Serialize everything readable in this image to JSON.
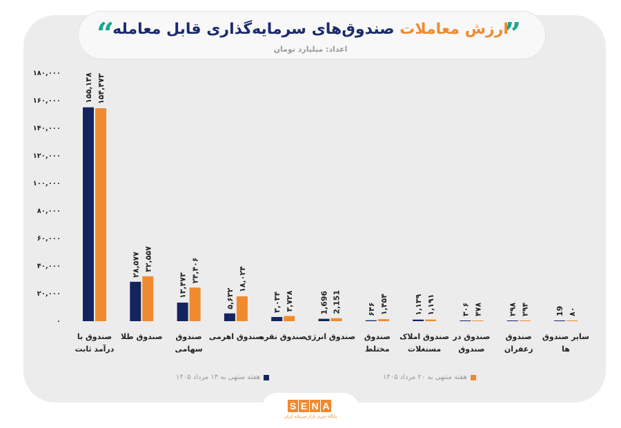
{
  "header": {
    "title_accent": "ارزش معاملات",
    "title_main": "صندوق‌های سرمایه‌گذاری قابل معامله",
    "subtitle": "اعداد: میلیارد تومان",
    "quote_left": "“",
    "quote_right": "”"
  },
  "legend": {
    "series1": "هفته منتهی به ۱۴ مرداد ۱۴۰۵",
    "series2": "هفته منتهی به ۲۰ مرداد ۱۴۰۵"
  },
  "logo": {
    "letters": [
      "S",
      "E",
      "N",
      "A"
    ],
    "tagline": "پایگاه خبری بازار سرمایه ایران"
  },
  "colors": {
    "series1": "#14245e",
    "series2": "#f08a2e",
    "accent": "#f08a2e",
    "title": "#1b2a6b",
    "quote": "#1aa68f"
  },
  "chart_data": {
    "type": "bar",
    "ylim": [
      0,
      180000
    ],
    "yticks": [
      0,
      20000,
      40000,
      60000,
      80000,
      100000,
      120000,
      140000,
      160000,
      180000
    ],
    "ytick_labels": [
      "۰",
      "۲۰,۰۰۰",
      "۴۰,۰۰۰",
      "۶۰,۰۰۰",
      "۸۰,۰۰۰",
      "۱۰۰,۰۰۰",
      "۱۲۰,۰۰۰",
      "۱۴۰,۰۰۰",
      "۱۶۰,۰۰۰",
      "۱۸۰,۰۰۰"
    ],
    "categories": [
      [
        "صندوق با",
        "درآمد ثابت"
      ],
      [
        "صندوق طلا"
      ],
      [
        "صندوق",
        "سهامی"
      ],
      [
        "صندوق اهرمی"
      ],
      [
        "صندوق نقره"
      ],
      [
        "صندوق انرژی"
      ],
      [
        "صندوق",
        "مختلط"
      ],
      [
        "صندوق املاک",
        "مستغلات"
      ],
      [
        "صندوق در",
        "صندوق"
      ],
      [
        "صندوق",
        "زعفران"
      ],
      [
        "سایر صندوق",
        "ها"
      ]
    ],
    "series": [
      {
        "name": "هفته منتهی به ۱۴ مرداد ۱۴۰۵",
        "values": [
          155138,
          28577,
          13473,
          5632,
          3034,
          1696,
          646,
          1139,
          306,
          298,
          19
        ],
        "labels": [
          "۱۵۵,۱۳۸",
          "۲۸,۵۷۷",
          "۱۳,۴۷۳",
          "۵,۶۳۲",
          "۳,۰۳۴",
          "1,696",
          "۶۴۶",
          "۱,۱۳۹",
          "۳۰۶",
          "۲۹۸",
          "19"
        ]
      },
      {
        "name": "هفته منتهی به ۲۰ مرداد ۱۴۰۵",
        "values": [
          154473,
          32557,
          24406,
          18024,
          3728,
          2151,
          1454,
          1191,
          478,
          294,
          80
        ],
        "labels": [
          "۱۵۴,۴۷۳",
          "۳۲,۵۵۷",
          "۲۴,۴۰۶",
          "۱۸,۰۲۴",
          "۳,۷۲۸",
          "2,151",
          "۱,۴۵۴",
          "۱,۱۹۱",
          "۴۷۸",
          "۲۹۴",
          "۸۰"
        ]
      }
    ],
    "grid": false,
    "legend_position": "bottom"
  }
}
